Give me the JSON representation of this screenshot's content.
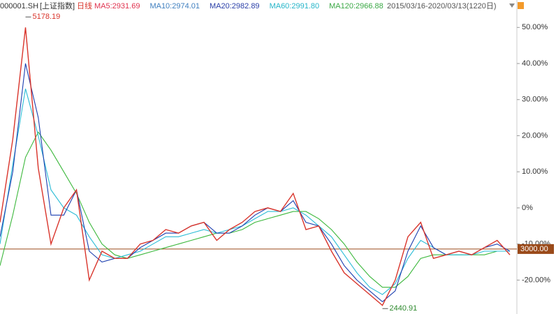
{
  "chart_data": {
    "type": "line",
    "header": {
      "code": "000001.SH",
      "name": "[上证指数]",
      "period": "日线",
      "range": "2015/03/16-2020/03/13(1220日)"
    },
    "indicators": [
      {
        "text": "MA5:2931.69",
        "color": "#e0334f"
      },
      {
        "text": "MA10:2974.01",
        "color": "#3f7fbf"
      },
      {
        "text": "MA20:2982.89",
        "color": "#2a3fa8"
      },
      {
        "text": "MA60:2991.80",
        "color": "#25b5c9"
      },
      {
        "text": "MA120:2966.88",
        "color": "#3aa845"
      }
    ],
    "series": [
      {
        "color": "#d9342b",
        "values": [
          -4,
          19,
          50,
          11,
          -10,
          0,
          5,
          -20,
          -12,
          -14,
          -14,
          -10,
          -9,
          -6,
          -7,
          -5,
          -4,
          -9,
          -6,
          -4,
          -1,
          0,
          -1,
          4,
          -6,
          -5,
          -12,
          -18,
          -21,
          -24,
          -27,
          -20,
          -8,
          -4,
          -14,
          -13,
          -12,
          -13,
          -11,
          -9,
          -13
        ]
      },
      {
        "color": "#1c3fb0",
        "values": [
          -8,
          10,
          40,
          25,
          -2,
          -2,
          5,
          -12,
          -15,
          -14,
          -14,
          -11,
          -9,
          -7,
          -7,
          -5,
          -4,
          -7,
          -7,
          -5,
          -2,
          0,
          -1,
          2,
          -4,
          -5,
          -10,
          -16,
          -20,
          -23,
          -26,
          -23,
          -12,
          -5,
          -11,
          -13,
          -12,
          -13,
          -11,
          -10,
          -12
        ]
      },
      {
        "color": "#2bbcd6",
        "values": [
          -10,
          12,
          33,
          20,
          5,
          0,
          -2,
          -8,
          -13,
          -14,
          -13,
          -12,
          -10,
          -8,
          -8,
          -7,
          -6,
          -7,
          -6,
          -5,
          -3,
          -1,
          -1,
          0,
          -2,
          -5,
          -8,
          -13,
          -18,
          -22,
          -24,
          -21,
          -14,
          -9,
          -11,
          -13,
          -13,
          -13,
          -12,
          -12,
          -12
        ]
      },
      {
        "color": "#3cb83c",
        "values": [
          -16,
          -2,
          14,
          21,
          16,
          10,
          4,
          -4,
          -10,
          -13,
          -14,
          -13,
          -12,
          -11,
          -10,
          -9,
          -8,
          -7,
          -7,
          -6,
          -4,
          -3,
          -2,
          -1,
          -1,
          -3,
          -6,
          -10,
          -15,
          -19,
          -22,
          -22,
          -19,
          -14,
          -13,
          -13,
          -13,
          -13,
          -13,
          -12,
          -12
        ]
      }
    ],
    "annotations": [
      {
        "text": "5178.19",
        "index": 2,
        "y": 52.9
      },
      {
        "text": "2440.91",
        "index": 30,
        "y": -27.9
      }
    ],
    "ref_line": {
      "value": -11.4,
      "label": "3000.00",
      "color": "#9a4a1a"
    },
    "ylim": [
      -29.4,
      57.6
    ],
    "yticks": [
      {
        "value": 50,
        "label": "50.00%"
      },
      {
        "value": 40,
        "label": "40.00%"
      },
      {
        "value": 30,
        "label": "30.00%"
      },
      {
        "value": 20,
        "label": "20.00%"
      },
      {
        "value": 10,
        "label": "10.00%"
      },
      {
        "value": 0,
        "label": "0%"
      },
      {
        "value": -10,
        "label": "-10.00%"
      },
      {
        "value": -20,
        "label": "-20.00%"
      }
    ]
  }
}
